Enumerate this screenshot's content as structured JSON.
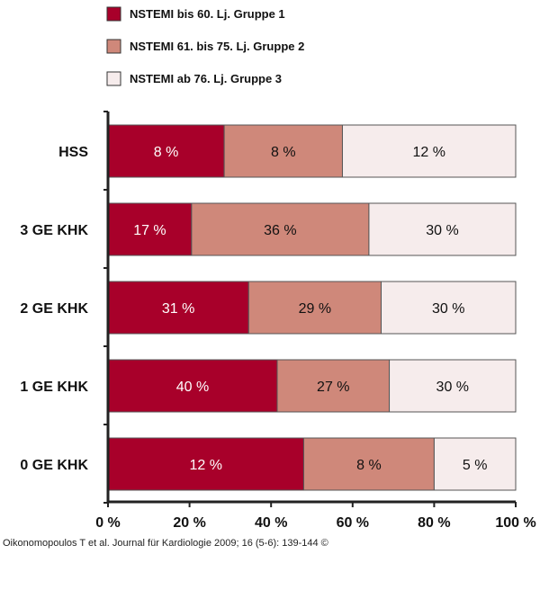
{
  "chart_data": {
    "type": "bar",
    "orientation": "horizontal",
    "stacked": true,
    "categories": [
      "HSS",
      "3 GE KHK",
      "2 GE KHK",
      "1 GE KHK",
      "0 GE KHK"
    ],
    "series": [
      {
        "name": "NSTEMI bis 60. Lj. Gruppe 1",
        "color": "#a8002a",
        "label_color": "#ffffff",
        "values": [
          28.5,
          20.5,
          34.5,
          41.5,
          48
        ],
        "labels": [
          "8 %",
          "17 %",
          "31 %",
          "40 %",
          "12 %"
        ]
      },
      {
        "name": "NSTEMI 61. bis 75. Lj. Gruppe 2",
        "color": "#cf887a",
        "label_color": "#111111",
        "values": [
          29,
          43.5,
          32.5,
          27.5,
          32
        ],
        "labels": [
          "8 %",
          "36 %",
          "29 %",
          "27 %",
          "8 %"
        ]
      },
      {
        "name": "NSTEMI ab 76. Lj. Gruppe 3",
        "color": "#f6ecec",
        "label_color": "#111111",
        "values": [
          42.5,
          36,
          33,
          31,
          20
        ],
        "labels": [
          "12 %",
          "30 %",
          "30 %",
          "30 %",
          "5 %"
        ]
      }
    ],
    "x_ticks": [
      "0 %",
      "20 %",
      "40 %",
      "60 %",
      "80 %",
      "100 %"
    ],
    "xlim": [
      0,
      100
    ],
    "legend_position": "top",
    "grid": false
  },
  "source_text": "Oikonomopoulos T et al. Journal für Kardiologie 2009; 16 (5-6): 139-144 ©"
}
